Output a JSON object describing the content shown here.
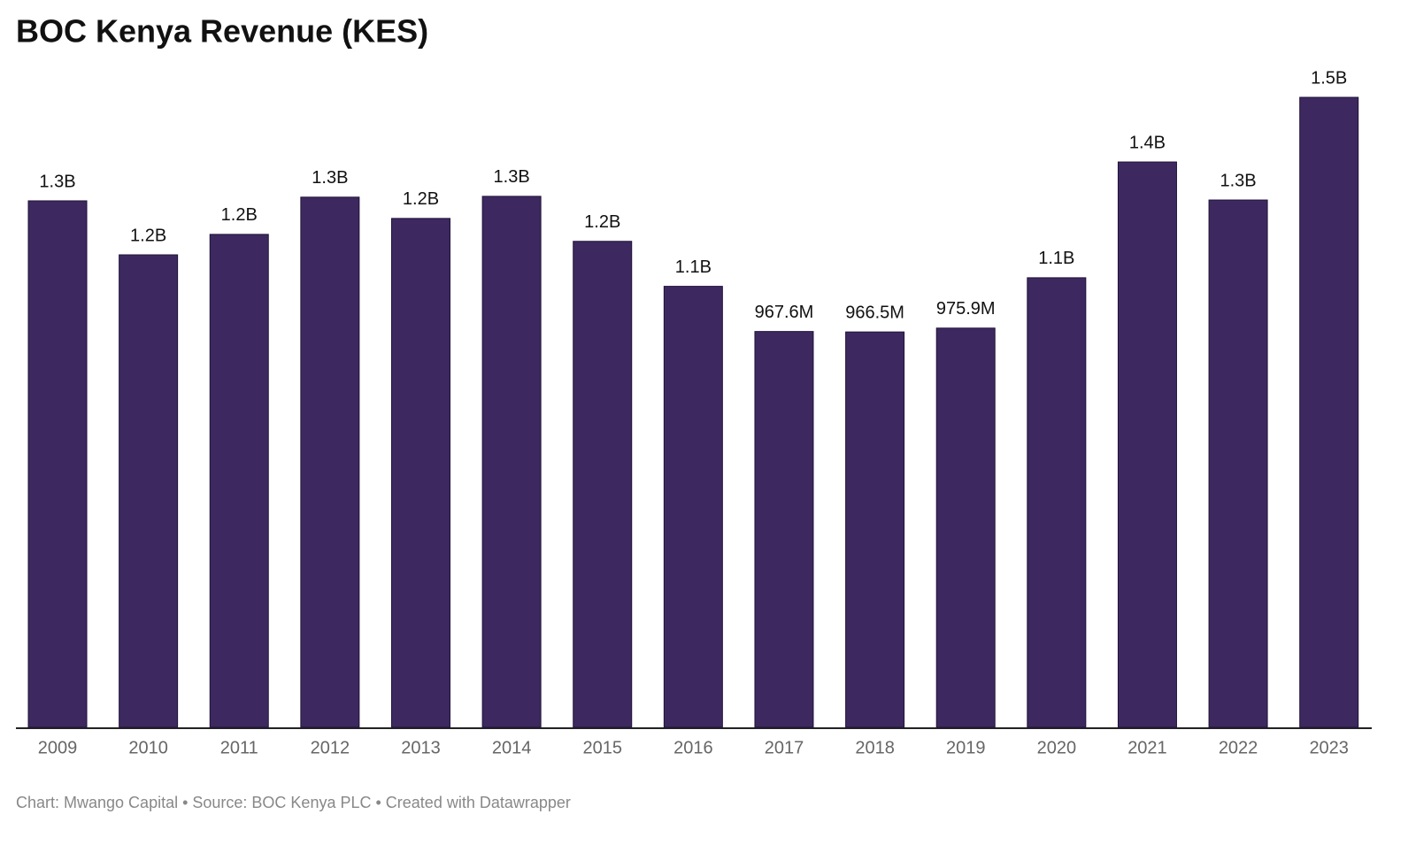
{
  "chart_data": {
    "type": "bar",
    "title": "BOC Kenya Revenue (KES)",
    "categories": [
      "2009",
      "2010",
      "2011",
      "2012",
      "2013",
      "2014",
      "2015",
      "2016",
      "2017",
      "2018",
      "2019",
      "2020",
      "2021",
      "2022",
      "2023"
    ],
    "values": [
      1287000000,
      1155000000,
      1205000000,
      1296000000,
      1244000000,
      1298000000,
      1188000000,
      1078000000,
      967600000,
      966500000,
      975900000,
      1099000000,
      1382000000,
      1289000000,
      1540000000
    ],
    "value_labels": [
      "1.3B",
      "1.2B",
      "1.2B",
      "1.3B",
      "1.2B",
      "1.3B",
      "1.2B",
      "1.1B",
      "967.6M",
      "966.5M",
      "975.9M",
      "1.1B",
      "1.4B",
      "1.3B",
      "1.5B"
    ],
    "color": "#3d2960",
    "footer": "Chart: Mwango Capital • Source: BOC Kenya PLC • Created with Datawrapper"
  }
}
